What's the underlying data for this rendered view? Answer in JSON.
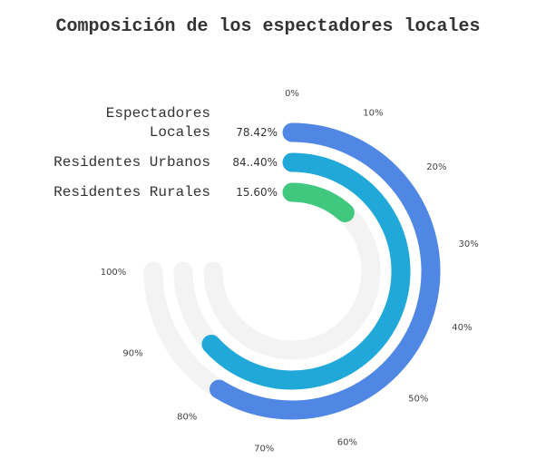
{
  "chart_data": {
    "type": "radial-bar",
    "title": "Composición de los espectadores locales",
    "axis": {
      "min": 0,
      "max": 100,
      "ticks": [
        0,
        10,
        20,
        30,
        40,
        50,
        60,
        70,
        80,
        90,
        100
      ],
      "tick_labels": [
        "0%",
        "10%",
        "20%",
        "30%",
        "40%",
        "50%",
        "60%",
        "70%",
        "80%",
        "90%",
        "100%"
      ],
      "max_sweep_percent_of_circle": 75
    },
    "series": [
      {
        "name_lines": [
          "Espectadores",
          "Locales"
        ],
        "value": 78.42,
        "value_label": "78.42%",
        "color": "#5087e5"
      },
      {
        "name_lines": [
          "Residentes Urbanos"
        ],
        "value": 84.4,
        "value_label": "84..40%",
        "color": "#20a9d8"
      },
      {
        "name_lines": [
          "Residentes Rurales"
        ],
        "value": 15.6,
        "value_label": "15.60%",
        "color": "#41c87f"
      }
    ],
    "track_color": "#f3f3f3"
  }
}
